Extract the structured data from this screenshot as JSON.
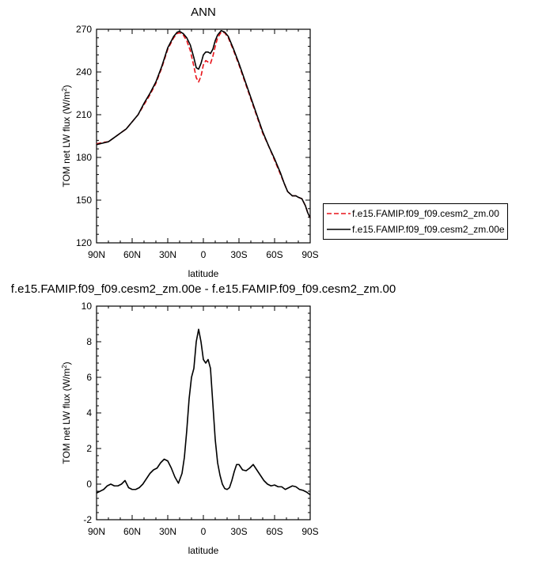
{
  "chart_data": [
    {
      "type": "line",
      "title": "ANN",
      "xlabel": "latitude",
      "ylabel": "TOM net LW flux (W/m²)",
      "ylabel_main": "TOM net LW flux (W/m",
      "ylabel_sup": "2",
      "ylabel_end": ")",
      "xlim": [
        90,
        -90
      ],
      "ylim": [
        120,
        270
      ],
      "x_ticks": [
        90,
        60,
        30,
        0,
        -30,
        -60,
        -90
      ],
      "x_tick_labels": [
        "90N",
        "60N",
        "30N",
        "0",
        "30S",
        "60S",
        "90S"
      ],
      "y_ticks": [
        120,
        150,
        180,
        210,
        240,
        270
      ],
      "y_tick_labels": [
        "120",
        "150",
        "180",
        "210",
        "240",
        "270"
      ],
      "legend_position": "right",
      "series": [
        {
          "name": "f.e15.FAMIP.f09_f09.cesm2_zm.00",
          "color": "#e8131a",
          "dash": "dashed",
          "x": [
            90,
            85,
            80,
            75,
            70,
            65,
            60,
            55,
            50,
            45,
            40,
            35,
            30,
            25,
            22,
            20,
            17,
            14,
            11,
            8,
            6,
            4,
            2,
            0,
            -2,
            -4,
            -6,
            -8,
            -10,
            -12,
            -15,
            -18,
            -21,
            -25,
            -30,
            -35,
            -40,
            -45,
            -50,
            -55,
            -60,
            -65,
            -68,
            -71,
            -75,
            -78,
            -80,
            -83,
            -86,
            -88,
            -90
          ],
          "values": [
            189.5,
            190.5,
            191,
            194,
            197,
            200,
            205,
            210,
            217,
            224,
            232,
            243,
            256,
            264,
            267,
            267.5,
            266,
            262,
            255,
            244,
            236,
            233,
            237,
            245,
            248,
            247,
            246,
            251,
            258,
            264,
            268,
            267.5,
            264,
            256,
            245,
            233,
            221,
            209,
            197,
            188,
            178,
            168,
            162,
            156,
            153,
            153,
            152,
            151,
            146,
            141,
            137.5
          ]
        },
        {
          "name": "f.e15.FAMIP.f09_f09.cesm2_zm.00e",
          "color": "#000000",
          "dash": "solid",
          "x": [
            90,
            85,
            80,
            75,
            70,
            65,
            60,
            55,
            50,
            45,
            40,
            35,
            30,
            25,
            22,
            20,
            17,
            14,
            11,
            8,
            6,
            4,
            2,
            0,
            -2,
            -4,
            -6,
            -8,
            -10,
            -12,
            -15,
            -18,
            -21,
            -25,
            -30,
            -35,
            -40,
            -45,
            -50,
            -55,
            -60,
            -65,
            -68,
            -71,
            -75,
            -78,
            -80,
            -83,
            -86,
            -88,
            -90
          ],
          "values": [
            189,
            190,
            191,
            194,
            197,
            200,
            205,
            210,
            218,
            225,
            233,
            244,
            257,
            265,
            268,
            268.5,
            267,
            264,
            259,
            250,
            243,
            242,
            246,
            252,
            254,
            254,
            253,
            256,
            262,
            266,
            269,
            268,
            265,
            257,
            246,
            234,
            222,
            210,
            198,
            188,
            179,
            169,
            162,
            156,
            153,
            153,
            152,
            151,
            146,
            141,
            137.5
          ]
        }
      ]
    },
    {
      "type": "line",
      "title": "f.e15.FAMIP.f09_f09.cesm2_zm.00e - f.e15.FAMIP.f09_f09.cesm2_zm.00",
      "xlabel": "latitude",
      "ylabel": "TOM net LW flux (W/m²)",
      "ylabel_main": "TOM net LW flux (W/m",
      "ylabel_sup": "2",
      "ylabel_end": ")",
      "xlim": [
        90,
        -90
      ],
      "ylim": [
        -2,
        10
      ],
      "x_ticks": [
        90,
        60,
        30,
        0,
        -30,
        -60,
        -90
      ],
      "x_tick_labels": [
        "90N",
        "60N",
        "30N",
        "0",
        "30S",
        "60S",
        "90S"
      ],
      "y_ticks": [
        -2,
        0,
        2,
        4,
        6,
        8,
        10
      ],
      "y_tick_labels": [
        "-2",
        "0",
        "2",
        "4",
        "6",
        "8",
        "10"
      ],
      "series": [
        {
          "color": "#000000",
          "dash": "solid",
          "x": [
            90,
            87,
            84,
            81,
            78,
            75,
            72,
            69,
            66,
            63,
            60,
            57,
            54,
            51,
            48,
            45,
            42,
            39,
            36,
            33,
            30,
            27,
            24,
            21,
            18,
            16,
            14,
            12,
            10,
            8,
            6,
            4,
            2,
            0,
            -2,
            -4,
            -6,
            -8,
            -10,
            -12,
            -14,
            -16,
            -18,
            -20,
            -22,
            -24,
            -26,
            -28,
            -30,
            -33,
            -36,
            -39,
            -42,
            -45,
            -48,
            -51,
            -54,
            -57,
            -60,
            -63,
            -66,
            -69,
            -72,
            -75,
            -78,
            -81,
            -84,
            -87,
            -90
          ],
          "values": [
            -0.5,
            -0.4,
            -0.3,
            -0.1,
            0.0,
            -0.1,
            -0.1,
            0.0,
            0.2,
            -0.2,
            -0.3,
            -0.3,
            -0.2,
            0.0,
            0.3,
            0.6,
            0.8,
            0.9,
            1.2,
            1.4,
            1.3,
            0.9,
            0.4,
            0.05,
            0.6,
            1.5,
            3.0,
            4.8,
            6.0,
            6.5,
            8.0,
            8.7,
            8.0,
            7.0,
            6.8,
            7.0,
            6.5,
            4.5,
            2.5,
            1.2,
            0.5,
            0.0,
            -0.25,
            -0.3,
            -0.2,
            0.2,
            0.7,
            1.1,
            1.1,
            0.8,
            0.75,
            0.9,
            1.1,
            0.8,
            0.5,
            0.2,
            0.0,
            -0.1,
            -0.05,
            -0.15,
            -0.15,
            -0.3,
            -0.2,
            -0.1,
            -0.15,
            -0.3,
            -0.35,
            -0.45,
            -0.6
          ]
        }
      ]
    }
  ]
}
